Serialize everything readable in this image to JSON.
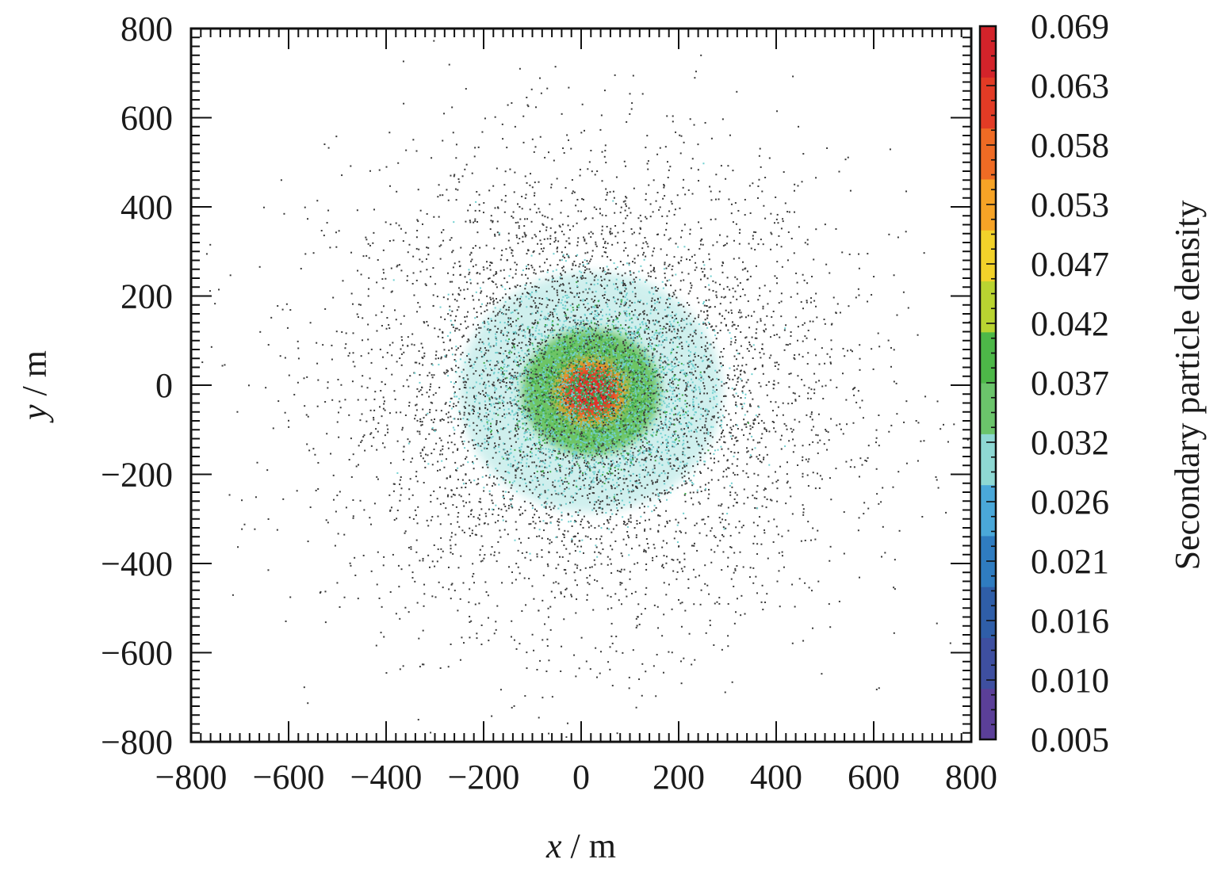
{
  "chart_data": {
    "type": "heatmap",
    "title": "",
    "xlabel": {
      "var": "x",
      "unit": " / m"
    },
    "ylabel": {
      "var": "y",
      "unit": " / m"
    },
    "xlim": [
      -800,
      800
    ],
    "ylim": [
      -800,
      800
    ],
    "x_ticks": [
      -800,
      -600,
      -400,
      -200,
      0,
      200,
      400,
      600,
      800
    ],
    "y_ticks": [
      -800,
      -600,
      -400,
      -200,
      0,
      200,
      400,
      600,
      800
    ],
    "x_tick_labels": [
      "−800",
      "−600",
      "−400",
      "−200",
      "0",
      "200",
      "400",
      "600",
      "800"
    ],
    "y_tick_labels": [
      "−800",
      "−600",
      "−400",
      "−200",
      "0",
      "200",
      "400",
      "600",
      "800"
    ],
    "grid": false,
    "colorbar": {
      "title": "Secondary particle density",
      "range": [
        0.005,
        0.069
      ],
      "tick_labels": [
        "0.069",
        "0.063",
        "0.058",
        "0.053",
        "0.047",
        "0.042",
        "0.037",
        "0.032",
        "0.026",
        "0.021",
        "0.016",
        "0.010",
        "0.005"
      ],
      "colors": [
        "#5b3f98",
        "#3e4fa0",
        "#2f5ea8",
        "#2f7cc0",
        "#4aa8d9",
        "#8ed8d3",
        "#6bc46b",
        "#4db848",
        "#b9d431",
        "#f2d22a",
        "#f6a326",
        "#ef6b24",
        "#e23b25",
        "#d3232a"
      ]
    },
    "density_model": {
      "center": [
        20,
        -15
      ],
      "core_radius": 70,
      "inner_ring_radius": 140,
      "halo_radius": 270,
      "peak_density": 0.069,
      "background_density": 0.005
    }
  },
  "colors": {
    "scatter_dot": "#3a3a3a",
    "halo": "#a8e3e0",
    "ring": "#5cbd4e",
    "core_outer": "#f6a326",
    "core_inner": "#e0302a"
  }
}
